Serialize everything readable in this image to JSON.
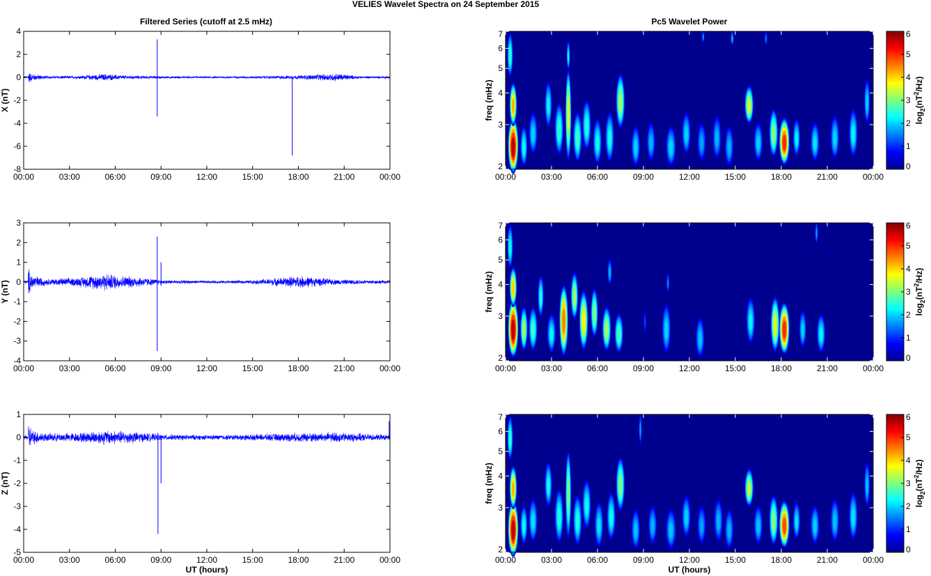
{
  "figure": {
    "title": "VELIES Wavelet Spectra on 24 September 2015",
    "left_title": "Filtered Series (cutoff at 2.5 mHz)",
    "right_title": "Pc5 Wavelet Power",
    "xlabel": "UT (hours)"
  },
  "colors": {
    "trace": "#0000ff",
    "background_power": "#00008f",
    "axis": "#000000"
  },
  "chart_data": [
    {
      "type": "line",
      "name": "X",
      "title": "Filtered Series (cutoff at 2.5 mHz)",
      "xlabel": "",
      "ylabel": "X (nT)",
      "x_ticks": [
        "00:00",
        "03:00",
        "06:00",
        "09:00",
        "12:00",
        "15:00",
        "18:00",
        "21:00",
        "00:00"
      ],
      "xlim_hours": [
        0,
        24
      ],
      "ylim": [
        -8,
        4
      ],
      "y_ticks": [
        4,
        2,
        0,
        -2,
        -4,
        -6,
        -8
      ],
      "envelope": [
        [
          0.3,
          0.6
        ],
        [
          0.6,
          0.35
        ],
        [
          1.5,
          0.15
        ],
        [
          3.5,
          0.15
        ],
        [
          5.3,
          0.35
        ],
        [
          6.5,
          0.2
        ],
        [
          9,
          0.12
        ],
        [
          12,
          0.1
        ],
        [
          15,
          0.12
        ],
        [
          18,
          0.2
        ],
        [
          20.5,
          0.4
        ],
        [
          22,
          0.12
        ],
        [
          24,
          0.12
        ]
      ],
      "spikes": [
        {
          "t": 8.75,
          "min": -3.4,
          "max": 3.3
        },
        {
          "t": 17.6,
          "min": -6.8,
          "max": 0.1
        }
      ]
    },
    {
      "type": "line",
      "name": "Y",
      "xlabel": "",
      "ylabel": "Y (nT)",
      "x_ticks": [
        "00:00",
        "03:00",
        "06:00",
        "09:00",
        "12:00",
        "15:00",
        "18:00",
        "21:00",
        "00:00"
      ],
      "xlim_hours": [
        0,
        24
      ],
      "ylim": [
        -4,
        3
      ],
      "y_ticks": [
        3,
        2,
        1,
        0,
        -1,
        -2,
        -3,
        -4
      ],
      "envelope": [
        [
          0.3,
          0.8
        ],
        [
          0.6,
          0.4
        ],
        [
          1.5,
          0.18
        ],
        [
          3.5,
          0.25
        ],
        [
          5.3,
          0.5
        ],
        [
          6.5,
          0.35
        ],
        [
          7.5,
          0.3
        ],
        [
          9,
          0.12
        ],
        [
          12,
          0.08
        ],
        [
          15,
          0.1
        ],
        [
          18,
          0.35
        ],
        [
          20.5,
          0.15
        ],
        [
          24,
          0.1
        ]
      ],
      "spikes": [
        {
          "t": 8.75,
          "min": -3.5,
          "max": 2.3
        },
        {
          "t": 9.0,
          "min": -0.2,
          "max": 1.0
        }
      ]
    },
    {
      "type": "line",
      "name": "Z",
      "xlabel": "UT (hours)",
      "ylabel": "Z (nT)",
      "x_ticks": [
        "00:00",
        "03:00",
        "06:00",
        "09:00",
        "12:00",
        "15:00",
        "18:00",
        "21:00",
        "00:00"
      ],
      "xlim_hours": [
        0,
        24
      ],
      "ylim": [
        -5,
        1
      ],
      "y_ticks": [
        1,
        0,
        -1,
        -2,
        -3,
        -4,
        -5
      ],
      "envelope": [
        [
          0.3,
          0.7
        ],
        [
          0.6,
          0.35
        ],
        [
          1.5,
          0.2
        ],
        [
          3.5,
          0.22
        ],
        [
          5.3,
          0.35
        ],
        [
          7,
          0.3
        ],
        [
          9,
          0.15
        ],
        [
          12,
          0.12
        ],
        [
          15,
          0.15
        ],
        [
          18,
          0.22
        ],
        [
          20.5,
          0.25
        ],
        [
          24,
          0.12
        ]
      ],
      "spikes": [
        {
          "t": 8.8,
          "min": -4.2,
          "max": 0.2
        },
        {
          "t": 9.0,
          "min": -2.0,
          "max": 0.0
        },
        {
          "t": 23.95,
          "min": -0.1,
          "max": 0.7
        }
      ]
    },
    {
      "type": "heatmap",
      "name": "X power",
      "title": "Pc5 Wavelet Power",
      "xlabel": "",
      "ylabel": "freq (mHz)",
      "colorbar_label": "log2(nT2/Hz)",
      "x_ticks": [
        "00:00",
        "03:00",
        "06:00",
        "09:00",
        "12:00",
        "15:00",
        "18:00",
        "21:00",
        "00:00"
      ],
      "y_ticks": [
        2,
        3,
        4,
        5,
        6,
        7
      ],
      "ylim": [
        2,
        7
      ],
      "clim": [
        0,
        6
      ],
      "colorbar_ticks": [
        0,
        1,
        2,
        3,
        4,
        5,
        6
      ],
      "blobs": [
        [
          0.5,
          2.4,
          0.35,
          0.8,
          5.6
        ],
        [
          0.5,
          3.5,
          0.25,
          0.9,
          4.2
        ],
        [
          0.3,
          5.5,
          0.2,
          1.5,
          2.5
        ],
        [
          1.2,
          2.4,
          0.25,
          0.6,
          2.3
        ],
        [
          1.8,
          2.7,
          0.3,
          0.7,
          2.0
        ],
        [
          2.8,
          3.5,
          0.25,
          1.0,
          2.2
        ],
        [
          3.5,
          2.8,
          0.3,
          0.9,
          2.5
        ],
        [
          4.1,
          3.2,
          0.2,
          1.8,
          3.6
        ],
        [
          4.1,
          5.5,
          0.12,
          1.0,
          2.2
        ],
        [
          4.7,
          2.6,
          0.3,
          0.8,
          2.6
        ],
        [
          5.3,
          2.9,
          0.3,
          0.9,
          2.4
        ],
        [
          6.0,
          2.5,
          0.3,
          0.7,
          2.3
        ],
        [
          6.8,
          2.6,
          0.3,
          0.8,
          2.3
        ],
        [
          7.5,
          3.6,
          0.3,
          1.2,
          3.2
        ],
        [
          8.5,
          2.4,
          0.3,
          0.6,
          2.0
        ],
        [
          9.5,
          2.5,
          0.3,
          0.6,
          1.8
        ],
        [
          10.8,
          2.4,
          0.35,
          0.6,
          2.0
        ],
        [
          11.8,
          2.7,
          0.3,
          0.7,
          2.0
        ],
        [
          12.8,
          2.5,
          0.3,
          0.6,
          1.7
        ],
        [
          13.8,
          2.6,
          0.3,
          0.7,
          1.8
        ],
        [
          14.6,
          2.4,
          0.3,
          0.6,
          1.8
        ],
        [
          14.8,
          6.5,
          0.1,
          0.6,
          1.8
        ],
        [
          15.9,
          3.5,
          0.3,
          0.8,
          3.5
        ],
        [
          16.5,
          2.5,
          0.3,
          0.6,
          2.0
        ],
        [
          17.5,
          2.7,
          0.3,
          0.8,
          3.0
        ],
        [
          18.2,
          2.5,
          0.35,
          0.7,
          5.0
        ],
        [
          19.0,
          2.6,
          0.25,
          0.6,
          2.2
        ],
        [
          20.2,
          2.5,
          0.3,
          0.6,
          2.1
        ],
        [
          21.5,
          2.6,
          0.3,
          0.7,
          2.0
        ],
        [
          22.7,
          2.7,
          0.3,
          0.8,
          2.2
        ],
        [
          23.6,
          3.6,
          0.2,
          1.0,
          2.0
        ],
        [
          12.9,
          6.6,
          0.1,
          0.5,
          1.5
        ],
        [
          17.0,
          6.5,
          0.1,
          0.6,
          1.4
        ]
      ]
    },
    {
      "type": "heatmap",
      "name": "Y power",
      "xlabel": "",
      "ylabel": "freq (mHz)",
      "colorbar_label": "log2(nT2/Hz)",
      "x_ticks": [
        "00:00",
        "03:00",
        "06:00",
        "09:00",
        "12:00",
        "15:00",
        "18:00",
        "21:00",
        "00:00"
      ],
      "y_ticks": [
        2,
        3,
        4,
        5,
        6,
        7
      ],
      "ylim": [
        2,
        7
      ],
      "clim": [
        0,
        6
      ],
      "colorbar_ticks": [
        0,
        1,
        2,
        3,
        4,
        5,
        6
      ],
      "blobs": [
        [
          0.5,
          2.6,
          0.35,
          0.9,
          5.6
        ],
        [
          0.5,
          3.8,
          0.25,
          0.9,
          4.0
        ],
        [
          0.3,
          5.5,
          0.2,
          1.5,
          2.3
        ],
        [
          1.2,
          2.6,
          0.25,
          0.7,
          3.2
        ],
        [
          1.8,
          2.6,
          0.3,
          0.7,
          2.6
        ],
        [
          2.3,
          3.5,
          0.2,
          0.9,
          2.4
        ],
        [
          3.0,
          2.5,
          0.3,
          0.6,
          2.2
        ],
        [
          3.8,
          2.8,
          0.3,
          1.2,
          4.5
        ],
        [
          4.5,
          3.5,
          0.25,
          1.0,
          3.2
        ],
        [
          5.1,
          2.8,
          0.3,
          1.0,
          3.8
        ],
        [
          5.8,
          3.0,
          0.25,
          0.9,
          3.0
        ],
        [
          6.6,
          2.6,
          0.3,
          0.7,
          3.2
        ],
        [
          7.4,
          2.5,
          0.3,
          0.6,
          2.7
        ],
        [
          6.8,
          4.4,
          0.15,
          0.7,
          1.8
        ],
        [
          10.5,
          2.6,
          0.3,
          0.8,
          2.0
        ],
        [
          10.6,
          4.0,
          0.1,
          0.5,
          1.5
        ],
        [
          12.7,
          2.4,
          0.3,
          0.6,
          1.9
        ],
        [
          16.0,
          2.8,
          0.3,
          0.8,
          2.2
        ],
        [
          17.6,
          2.7,
          0.3,
          0.9,
          3.6
        ],
        [
          18.2,
          2.6,
          0.35,
          0.8,
          5.0
        ],
        [
          19.4,
          2.6,
          0.25,
          0.6,
          2.0
        ],
        [
          20.6,
          2.5,
          0.3,
          0.6,
          2.2
        ],
        [
          20.3,
          6.3,
          0.1,
          0.9,
          1.6
        ],
        [
          9.1,
          2.8,
          0.1,
          0.4,
          1.1
        ]
      ]
    },
    {
      "type": "heatmap",
      "name": "Z power",
      "xlabel": "UT (hours)",
      "ylabel": "freq (mHz)",
      "colorbar_label": "log2(nT2/Hz)",
      "x_ticks": [
        "00:00",
        "03:00",
        "06:00",
        "09:00",
        "12:00",
        "15:00",
        "18:00",
        "21:00",
        "00:00"
      ],
      "y_ticks": [
        2,
        3,
        4,
        5,
        6,
        7
      ],
      "ylim": [
        2,
        7
      ],
      "clim": [
        0,
        6
      ],
      "colorbar_ticks": [
        0,
        1,
        2,
        3,
        4,
        5,
        6
      ],
      "blobs": [
        [
          0.5,
          2.4,
          0.35,
          0.8,
          5.6
        ],
        [
          0.5,
          3.5,
          0.25,
          0.9,
          4.2
        ],
        [
          0.3,
          5.5,
          0.2,
          1.5,
          2.5
        ],
        [
          1.2,
          2.5,
          0.25,
          0.6,
          2.3
        ],
        [
          1.8,
          2.6,
          0.3,
          0.7,
          2.1
        ],
        [
          2.8,
          3.6,
          0.25,
          1.0,
          2.3
        ],
        [
          3.5,
          2.7,
          0.3,
          0.9,
          2.4
        ],
        [
          4.1,
          3.3,
          0.2,
          1.8,
          3.0
        ],
        [
          4.7,
          2.6,
          0.3,
          0.8,
          2.4
        ],
        [
          5.3,
          3.0,
          0.3,
          0.9,
          2.3
        ],
        [
          6.1,
          2.5,
          0.3,
          0.7,
          2.1
        ],
        [
          6.9,
          2.7,
          0.3,
          0.8,
          2.3
        ],
        [
          7.5,
          3.6,
          0.3,
          1.2,
          3.0
        ],
        [
          8.5,
          2.4,
          0.3,
          0.6,
          1.9
        ],
        [
          8.8,
          6.0,
          0.1,
          1.2,
          1.6
        ],
        [
          9.6,
          2.5,
          0.3,
          0.6,
          1.8
        ],
        [
          10.8,
          2.4,
          0.35,
          0.6,
          1.9
        ],
        [
          11.8,
          2.7,
          0.3,
          0.7,
          2.0
        ],
        [
          12.8,
          2.5,
          0.3,
          0.6,
          1.7
        ],
        [
          13.9,
          2.6,
          0.3,
          0.7,
          1.8
        ],
        [
          14.6,
          2.4,
          0.3,
          0.6,
          1.8
        ],
        [
          15.9,
          3.5,
          0.3,
          0.8,
          3.4
        ],
        [
          16.5,
          2.5,
          0.3,
          0.6,
          1.9
        ],
        [
          17.5,
          2.6,
          0.3,
          0.8,
          3.0
        ],
        [
          18.2,
          2.5,
          0.35,
          0.7,
          4.8
        ],
        [
          19.0,
          2.6,
          0.25,
          0.6,
          2.1
        ],
        [
          20.2,
          2.5,
          0.3,
          0.6,
          2.0
        ],
        [
          21.5,
          2.6,
          0.3,
          0.7,
          1.9
        ],
        [
          22.7,
          2.7,
          0.3,
          0.8,
          2.1
        ],
        [
          23.6,
          3.6,
          0.2,
          1.0,
          1.9
        ]
      ]
    }
  ]
}
